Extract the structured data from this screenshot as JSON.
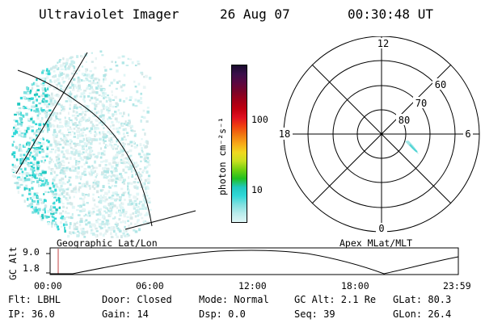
{
  "header": {
    "title": "Ultraviolet Imager",
    "date": "26 Aug 07",
    "time": "00:30:48 UT"
  },
  "colorbar": {
    "unit_label": "photon cm⁻²s⁻¹",
    "tick_labels": [
      "100",
      "10"
    ],
    "colors": [
      "#1a0b2e",
      "#3a0f4a",
      "#5a0840",
      "#7a0428",
      "#a00018",
      "#c00010",
      "#e01020",
      "#f04010",
      "#f07810",
      "#f8a818",
      "#f0d820",
      "#c8e020",
      "#70d010",
      "#20c020",
      "#20c8c0",
      "#30d8d8",
      "#80e0e0",
      "#b8ecec",
      "#dff6f6"
    ]
  },
  "polar": {
    "top_label": "12",
    "left_label": "18",
    "right_label": "6",
    "bottom_label": "0",
    "ring_labels": [
      "60",
      "70",
      "80"
    ]
  },
  "map_labels": {
    "left": "Geographic Lat/Lon",
    "right": "Apex MLat/MLT"
  },
  "altitude_plot": {
    "ylabel": "GC Alt",
    "y_ticks": [
      "9.0",
      "1.8"
    ],
    "x_ticks": [
      "00:00",
      "06:00",
      "12:00",
      "18:00",
      "23:59"
    ]
  },
  "footer": {
    "flt": "Flt: LBHL",
    "ip": "IP: 36.0",
    "door": "Door: Closed",
    "gain": "Gain: 14",
    "mode": "Mode: Normal",
    "dsp": "Dsp:    0.0",
    "gcalt": "GC Alt: 2.1 Re",
    "seq": "Seq: 39",
    "glat": "GLat:  80.3",
    "glon": "GLon:  26.4"
  }
}
